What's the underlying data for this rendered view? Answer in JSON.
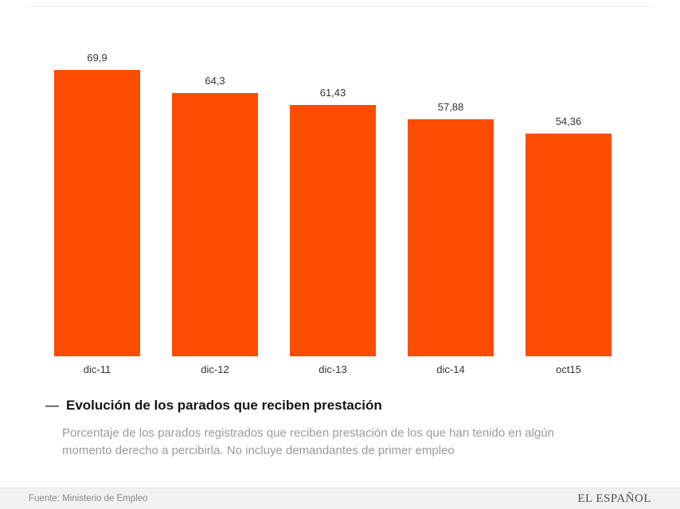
{
  "chart_data": {
    "type": "bar",
    "title": "Evolución de los parados que reciben prestación",
    "categories": [
      "dic-11",
      "dic-12",
      "dic-13",
      "dic-14",
      "oct15"
    ],
    "values": [
      69.9,
      64.3,
      61.43,
      57.88,
      54.36
    ],
    "value_labels": [
      "69,9",
      "64,3",
      "61,43",
      "57,88",
      "54,36"
    ],
    "ylim": [
      0,
      87
    ],
    "bar_color": "#fb4c00",
    "grid": false,
    "legend_position": "bottom-left"
  },
  "legend": {
    "marker": "—",
    "label": "Evolución de los parados que reciben prestación"
  },
  "subtitle": {
    "text": "Porcentaje de los parados registrados que reciben prestación de los que han tenido en algún momento derecho a percibirla. No incluye demandantes de primer empleo"
  },
  "footer": {
    "source": "Fuente: Ministerio de Empleo",
    "brand": "EL ESPAÑOL"
  }
}
